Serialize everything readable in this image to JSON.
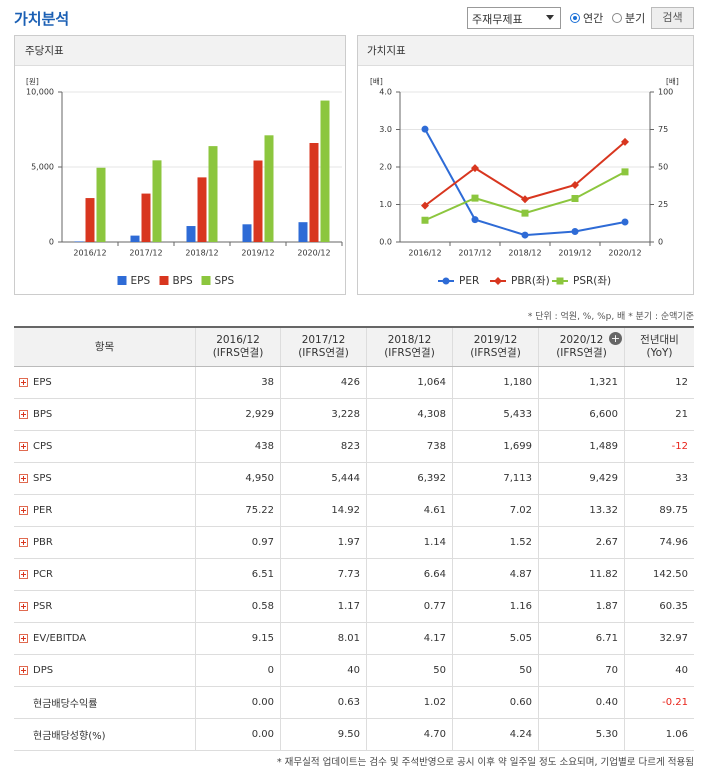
{
  "header": {
    "title": "가치분석",
    "select": "주재무제표",
    "radio_annual": "연간",
    "radio_quarter": "분기",
    "button": "검색",
    "selected": "annual"
  },
  "chart_data": [
    {
      "type": "bar",
      "title": "주당지표",
      "y_unit": "[원]",
      "categories": [
        "2016/12",
        "2017/12",
        "2018/12",
        "2019/12",
        "2020/12"
      ],
      "series": [
        {
          "name": "EPS",
          "color": "#2e6bd6",
          "values": [
            38,
            426,
            1064,
            1180,
            1321
          ]
        },
        {
          "name": "BPS",
          "color": "#d8361f",
          "values": [
            2929,
            3228,
            4308,
            5433,
            6600
          ]
        },
        {
          "name": "SPS",
          "color": "#8cc63e",
          "values": [
            4950,
            5444,
            6392,
            7113,
            9429
          ]
        }
      ],
      "ylim": [
        0,
        10000
      ],
      "yticks": [
        0,
        {
          "value": 5000,
          "label": "5,000"
        },
        {
          "value": 10000,
          "label": "10,000"
        }
      ],
      "grid": true
    },
    {
      "type": "line",
      "title": "가치지표",
      "y_unit": "[배]",
      "y2_unit": "[배]",
      "categories": [
        "2016/12",
        "2017/12",
        "2018/12",
        "2019/12",
        "2020/12"
      ],
      "series": [
        {
          "name": "PER",
          "color": "#2e6bd6",
          "marker": "circle",
          "axis": "y2",
          "values": [
            75.22,
            14.92,
            4.61,
            7.02,
            13.32
          ]
        },
        {
          "name": "PBR(좌)",
          "color": "#d8361f",
          "marker": "diamond",
          "values": [
            0.97,
            1.97,
            1.14,
            1.52,
            2.67
          ]
        },
        {
          "name": "PSR(좌)",
          "color": "#8cc63e",
          "marker": "square",
          "values": [
            0.58,
            1.17,
            0.77,
            1.16,
            1.87
          ]
        }
      ],
      "ylim": [
        0,
        4
      ],
      "yticks": [
        {
          "value": 0,
          "label": "0.0"
        },
        {
          "value": 1,
          "label": "1.0"
        },
        {
          "value": 2,
          "label": "2.0"
        },
        {
          "value": 3,
          "label": "3.0"
        },
        {
          "value": 4,
          "label": "4.0"
        }
      ],
      "y2lim": [
        0,
        100
      ],
      "y2ticks": [
        0,
        25,
        50,
        75,
        100
      ],
      "grid": true
    }
  ],
  "unit_note": "* 단위 : 억원, %, %p, 배   * 분기 : 순액기준",
  "table": {
    "columns": [
      [
        "항목"
      ],
      [
        "2016/12",
        "(IFRS연결)"
      ],
      [
        "2017/12",
        "(IFRS연결)"
      ],
      [
        "2018/12",
        "(IFRS연결)"
      ],
      [
        "2019/12",
        "(IFRS연결)"
      ],
      [
        "2020/12",
        "(IFRS연결)"
      ],
      [
        "전년대비",
        "(YoY)"
      ]
    ],
    "rows": [
      {
        "label": "EPS",
        "expandable": true,
        "values": [
          "38",
          "426",
          "1,064",
          "1,180",
          "1,321",
          "12"
        ]
      },
      {
        "label": "BPS",
        "expandable": true,
        "values": [
          "2,929",
          "3,228",
          "4,308",
          "5,433",
          "6,600",
          "21"
        ]
      },
      {
        "label": "CPS",
        "expandable": true,
        "values": [
          "438",
          "823",
          "738",
          "1,699",
          "1,489",
          "-12"
        ]
      },
      {
        "label": "SPS",
        "expandable": true,
        "values": [
          "4,950",
          "5,444",
          "6,392",
          "7,113",
          "9,429",
          "33"
        ]
      },
      {
        "label": "PER",
        "expandable": true,
        "values": [
          "75.22",
          "14.92",
          "4.61",
          "7.02",
          "13.32",
          "89.75"
        ]
      },
      {
        "label": "PBR",
        "expandable": true,
        "values": [
          "0.97",
          "1.97",
          "1.14",
          "1.52",
          "2.67",
          "74.96"
        ]
      },
      {
        "label": "PCR",
        "expandable": true,
        "values": [
          "6.51",
          "7.73",
          "6.64",
          "4.87",
          "11.82",
          "142.50"
        ]
      },
      {
        "label": "PSR",
        "expandable": true,
        "values": [
          "0.58",
          "1.17",
          "0.77",
          "1.16",
          "1.87",
          "60.35"
        ]
      },
      {
        "label": "EV/EBITDA",
        "expandable": true,
        "values": [
          "9.15",
          "8.01",
          "4.17",
          "5.05",
          "6.71",
          "32.97"
        ]
      },
      {
        "label": "DPS",
        "expandable": true,
        "values": [
          "0",
          "40",
          "50",
          "50",
          "70",
          "40"
        ]
      },
      {
        "label": "현금배당수익률",
        "expandable": false,
        "values": [
          "0.00",
          "0.63",
          "1.02",
          "0.60",
          "0.40",
          "-0.21"
        ]
      },
      {
        "label": "현금배당성향(%)",
        "expandable": false,
        "values": [
          "0.00",
          "9.50",
          "4.70",
          "4.24",
          "5.30",
          "1.06"
        ]
      }
    ]
  },
  "footnote": "* 재무실적 업데이트는 검수 및 주석반영으로 공시 이후 약 일주일 정도 소요되며, 기업별로 다르게 적용됨"
}
